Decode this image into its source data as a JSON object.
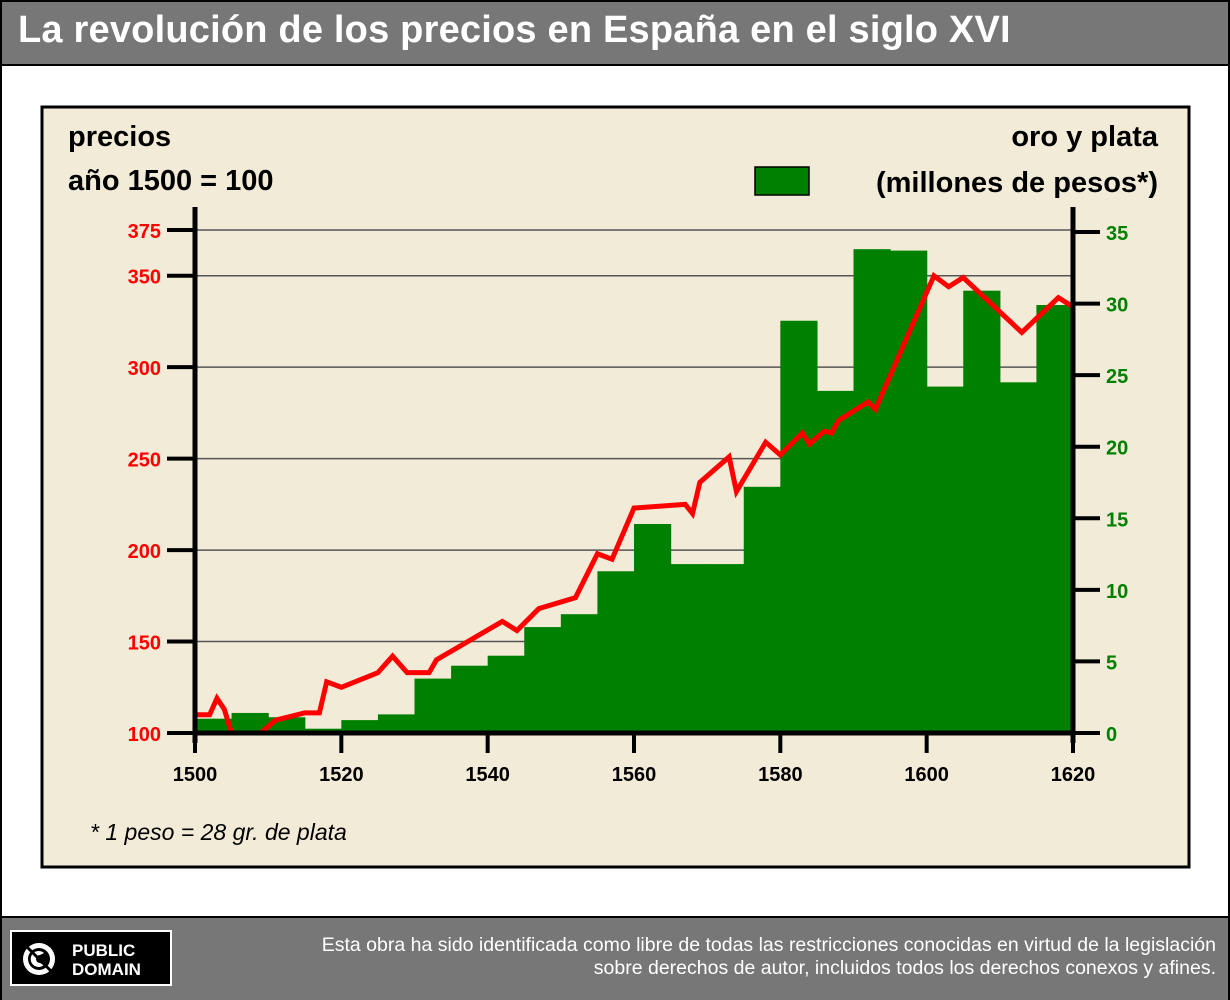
{
  "header": {
    "title": "La revolución de los precios en España en el siglo XVI"
  },
  "footer": {
    "badge": "PUBLIC\nDOMAIN",
    "license": "Esta obra ha sido identificada como libre de todas las restricciones conocidas en virtud de la legislación sobre derechos de autor, incluidos todos los derechos conexos y afines."
  },
  "chart_data": {
    "type": "bar+line",
    "left_label": [
      "precios",
      "año 1500 = 100"
    ],
    "right_label": "oro y plata",
    "legend": "(millones de pesos*)",
    "footnote": "* 1 peso = 28 gr. de plata",
    "x_ticks": [
      "1500",
      "1520",
      "1540",
      "1560",
      "1580",
      "1600",
      "1620"
    ],
    "x_range": [
      1500,
      1620
    ],
    "left_ticks": [
      "100",
      "150",
      "200",
      "250",
      "300",
      "350",
      "375"
    ],
    "left_range": [
      100,
      375
    ],
    "right_ticks": [
      "0",
      "5",
      "10",
      "15",
      "20",
      "25",
      "30",
      "35"
    ],
    "right_range": [
      0,
      35
    ],
    "colors": {
      "bars": "#008000",
      "line": "#ff0000",
      "left_axis": "#ff0000",
      "right_axis": "#008000",
      "background": "#f2ebd8"
    },
    "bars": [
      {
        "from": 1500,
        "to": 1505,
        "value": 1.0
      },
      {
        "from": 1505,
        "to": 1510,
        "value": 1.4
      },
      {
        "from": 1510,
        "to": 1515,
        "value": 1.1
      },
      {
        "from": 1515,
        "to": 1520,
        "value": 0.3
      },
      {
        "from": 1520,
        "to": 1525,
        "value": 0.9
      },
      {
        "from": 1525,
        "to": 1530,
        "value": 1.3
      },
      {
        "from": 1530,
        "to": 1535,
        "value": 3.8
      },
      {
        "from": 1535,
        "to": 1540,
        "value": 4.7
      },
      {
        "from": 1540,
        "to": 1545,
        "value": 5.4
      },
      {
        "from": 1545,
        "to": 1550,
        "value": 7.4
      },
      {
        "from": 1550,
        "to": 1555,
        "value": 8.3
      },
      {
        "from": 1555,
        "to": 1560,
        "value": 11.3
      },
      {
        "from": 1560,
        "to": 1565,
        "value": 14.6
      },
      {
        "from": 1565,
        "to": 1570,
        "value": 11.8
      },
      {
        "from": 1570,
        "to": 1575,
        "value": 11.8
      },
      {
        "from": 1575,
        "to": 1580,
        "value": 17.2
      },
      {
        "from": 1580,
        "to": 1585,
        "value": 28.8
      },
      {
        "from": 1585,
        "to": 1590,
        "value": 23.9
      },
      {
        "from": 1590,
        "to": 1595,
        "value": 33.8
      },
      {
        "from": 1595,
        "to": 1600,
        "value": 33.7
      },
      {
        "from": 1600,
        "to": 1605,
        "value": 24.2
      },
      {
        "from": 1605,
        "to": 1610,
        "value": 30.9
      },
      {
        "from": 1610,
        "to": 1615,
        "value": 24.5
      },
      {
        "from": 1615,
        "to": 1620,
        "value": 29.9
      }
    ],
    "prices": [
      [
        1500,
        110
      ],
      [
        1502,
        110
      ],
      [
        1503,
        119
      ],
      [
        1504,
        113
      ],
      [
        1505,
        100
      ],
      [
        1509,
        100
      ],
      [
        1511,
        107
      ],
      [
        1513,
        109
      ],
      [
        1515,
        111
      ],
      [
        1517,
        111
      ],
      [
        1518,
        128
      ],
      [
        1520,
        125
      ],
      [
        1525,
        133
      ],
      [
        1527,
        142
      ],
      [
        1529,
        133
      ],
      [
        1532,
        133
      ],
      [
        1533,
        140
      ],
      [
        1542,
        161
      ],
      [
        1544,
        156
      ],
      [
        1547,
        168
      ],
      [
        1552,
        174
      ],
      [
        1555,
        198
      ],
      [
        1557,
        195
      ],
      [
        1560,
        223
      ],
      [
        1567,
        225
      ],
      [
        1568,
        220
      ],
      [
        1569,
        237
      ],
      [
        1573,
        251
      ],
      [
        1574,
        232
      ],
      [
        1578,
        259
      ],
      [
        1580,
        252
      ],
      [
        1583,
        264
      ],
      [
        1584,
        258
      ],
      [
        1586,
        265
      ],
      [
        1587,
        264
      ],
      [
        1588,
        271
      ],
      [
        1590,
        276
      ],
      [
        1592,
        281
      ],
      [
        1593,
        277
      ],
      [
        1601,
        350
      ],
      [
        1603,
        344
      ],
      [
        1605,
        349
      ],
      [
        1613,
        319
      ],
      [
        1618,
        338
      ],
      [
        1620,
        333
      ]
    ]
  }
}
